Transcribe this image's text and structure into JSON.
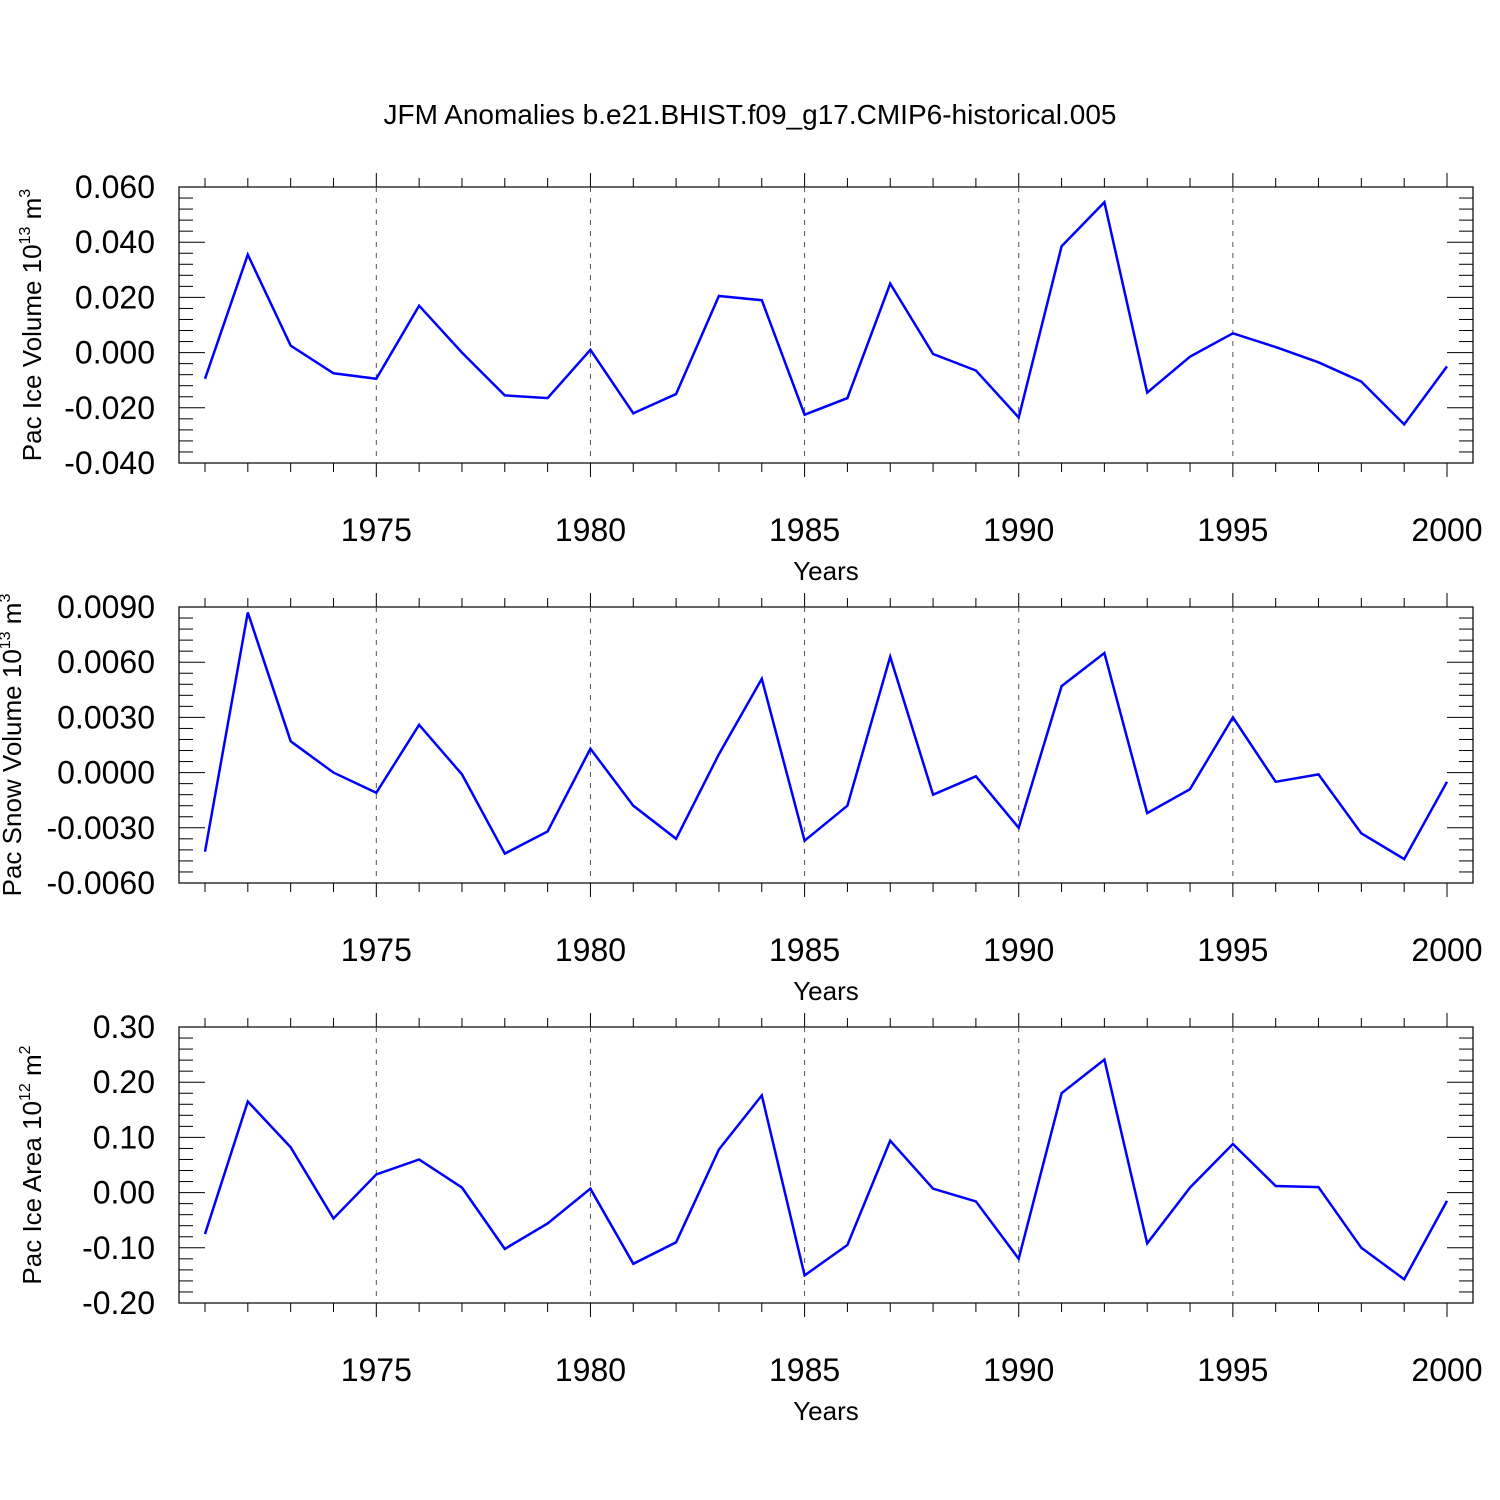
{
  "title": "JFM Anomalies b.e21.BHIST.f09_g17.CMIP6-historical.005",
  "chart_data": [
    {
      "type": "line",
      "ylabel": "Pac Ice Volume 10",
      "ylabel_exp": "13",
      "ylabel_unit": " m",
      "ylabel_unit_exp": "3",
      "xlabel": "Years",
      "xlim": [
        1971,
        2000
      ],
      "ylim": [
        -0.04,
        0.06
      ],
      "yticks": [
        -0.04,
        -0.02,
        0.0,
        0.02,
        0.04,
        0.06
      ],
      "ytick_labels": [
        "-0.040",
        "-0.020",
        "0.000",
        "0.020",
        "0.040",
        "0.060"
      ],
      "xticks": [
        1975,
        1980,
        1985,
        1990,
        1995,
        2000
      ],
      "xtick_labels": [
        "1975",
        "1980",
        "1985",
        "1990",
        "1995",
        "2000"
      ],
      "grid": "x dashed at major ticks",
      "series": [
        {
          "name": "Pac Ice Volume",
          "color": "#0000ff",
          "x": [
            1971,
            1972,
            1973,
            1974,
            1975,
            1976,
            1977,
            1978,
            1979,
            1980,
            1981,
            1982,
            1983,
            1984,
            1985,
            1986,
            1987,
            1988,
            1989,
            1990,
            1991,
            1992,
            1993,
            1994,
            1995,
            1996,
            1997,
            1998,
            1999,
            2000
          ],
          "values": [
            -0.0095,
            0.0355,
            0.0025,
            -0.0075,
            -0.0095,
            0.017,
            0.0,
            -0.0155,
            -0.0165,
            0.001,
            -0.022,
            -0.015,
            0.0205,
            0.019,
            -0.0225,
            -0.0165,
            0.025,
            -0.0005,
            -0.0065,
            -0.0235,
            0.0385,
            0.0545,
            -0.0145,
            -0.0015,
            0.007,
            0.002,
            -0.0035,
            -0.0105,
            -0.026,
            -0.005
          ]
        }
      ]
    },
    {
      "type": "line",
      "ylabel": "Pac Snow Volume 10",
      "ylabel_exp": "13",
      "ylabel_unit": " m",
      "ylabel_unit_exp": "3",
      "xlabel": "Years",
      "xlim": [
        1971,
        2000
      ],
      "ylim": [
        -0.006,
        0.009
      ],
      "yticks": [
        -0.006,
        -0.003,
        0.0,
        0.003,
        0.006,
        0.009
      ],
      "ytick_labels": [
        "-0.0060",
        "-0.0030",
        "0.0000",
        "0.0030",
        "0.0060",
        "0.0090"
      ],
      "xticks": [
        1975,
        1980,
        1985,
        1990,
        1995,
        2000
      ],
      "xtick_labels": [
        "1975",
        "1980",
        "1985",
        "1990",
        "1995",
        "2000"
      ],
      "grid": "x dashed at major ticks",
      "series": [
        {
          "name": "Pac Snow Volume",
          "color": "#0000ff",
          "x": [
            1971,
            1972,
            1973,
            1974,
            1975,
            1976,
            1977,
            1978,
            1979,
            1980,
            1981,
            1982,
            1983,
            1984,
            1985,
            1986,
            1987,
            1988,
            1989,
            1990,
            1991,
            1992,
            1993,
            1994,
            1995,
            1996,
            1997,
            1998,
            1999,
            2000
          ],
          "values": [
            -0.0043,
            0.0087,
            0.0017,
            0.0,
            -0.0011,
            0.0026,
            -0.0001,
            -0.0044,
            -0.0032,
            0.0013,
            -0.0018,
            -0.0036,
            0.001,
            0.0051,
            -0.0037,
            -0.0018,
            0.0063,
            -0.0012,
            -0.0002,
            -0.003,
            0.0047,
            0.0065,
            -0.0022,
            -0.0009,
            0.003,
            -0.0005,
            -0.0001,
            -0.0033,
            -0.0047,
            -0.0005
          ]
        }
      ]
    },
    {
      "type": "line",
      "ylabel": "Pac Ice Area 10",
      "ylabel_exp": "12",
      "ylabel_unit": " m",
      "ylabel_unit_exp": "2",
      "xlabel": "Years",
      "xlim": [
        1971,
        2000
      ],
      "ylim": [
        -0.2,
        0.3
      ],
      "yticks": [
        -0.2,
        -0.1,
        0.0,
        0.1,
        0.2,
        0.3
      ],
      "ytick_labels": [
        "-0.20",
        "-0.10",
        "0.00",
        "0.10",
        "0.20",
        "0.30"
      ],
      "xticks": [
        1975,
        1980,
        1985,
        1990,
        1995,
        2000
      ],
      "xtick_labels": [
        "1975",
        "1980",
        "1985",
        "1990",
        "1995",
        "2000"
      ],
      "grid": "x dashed at major ticks",
      "series": [
        {
          "name": "Pac Ice Area",
          "color": "#0000ff",
          "x": [
            1971,
            1972,
            1973,
            1974,
            1975,
            1976,
            1977,
            1978,
            1979,
            1980,
            1981,
            1982,
            1983,
            1984,
            1985,
            1986,
            1987,
            1988,
            1989,
            1990,
            1991,
            1992,
            1993,
            1994,
            1995,
            1996,
            1997,
            1998,
            1999,
            2000
          ],
          "values": [
            -0.075,
            0.165,
            0.082,
            -0.047,
            0.033,
            0.06,
            0.009,
            -0.102,
            -0.056,
            0.007,
            -0.129,
            -0.09,
            0.078,
            0.176,
            -0.15,
            -0.095,
            0.094,
            0.007,
            -0.016,
            -0.12,
            0.18,
            0.241,
            -0.092,
            0.009,
            0.088,
            0.012,
            0.01,
            -0.1,
            -0.157,
            -0.015
          ]
        }
      ]
    }
  ]
}
